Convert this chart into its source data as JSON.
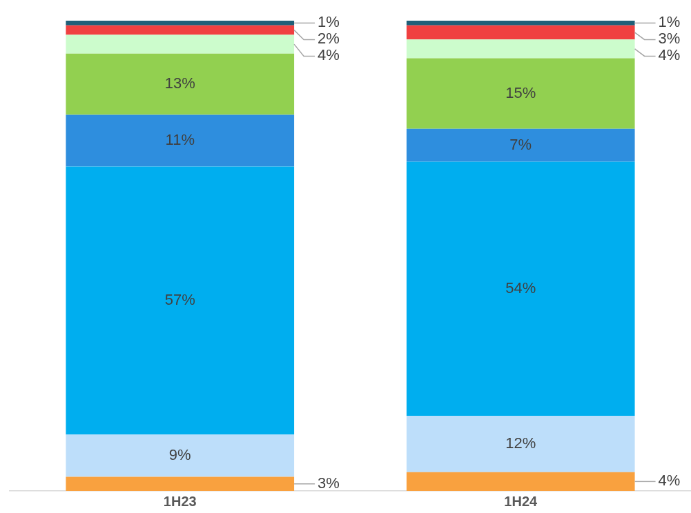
{
  "chart_data": {
    "type": "bar",
    "stacked": true,
    "categories": [
      "1H23",
      "1H24"
    ],
    "series": [
      {
        "color": "#f9a13f",
        "values": [
          3,
          4
        ],
        "value_labels": [
          "3%",
          "4%"
        ]
      },
      {
        "color": "#bddefa",
        "values": [
          9,
          12
        ],
        "value_labels": [
          "9%",
          "12%"
        ]
      },
      {
        "color": "#00aeef",
        "values": [
          57,
          54
        ],
        "value_labels": [
          "57%",
          "54%"
        ]
      },
      {
        "color": "#2e8ede",
        "values": [
          11,
          7
        ],
        "value_labels": [
          "11%",
          "7%"
        ]
      },
      {
        "color": "#92d050",
        "values": [
          13,
          15
        ],
        "value_labels": [
          "13%",
          "15%"
        ]
      },
      {
        "color": "#ccfccc",
        "values": [
          4,
          4
        ],
        "value_labels": [
          "4%",
          "4%"
        ]
      },
      {
        "color": "#f04040",
        "values": [
          2,
          3
        ],
        "value_labels": [
          "2%",
          "3%"
        ]
      },
      {
        "color": "#1f5f78",
        "values": [
          1,
          1
        ],
        "value_labels": [
          "1%",
          "1%"
        ]
      }
    ],
    "tick_labels": "x",
    "grid": false,
    "legend": false
  }
}
